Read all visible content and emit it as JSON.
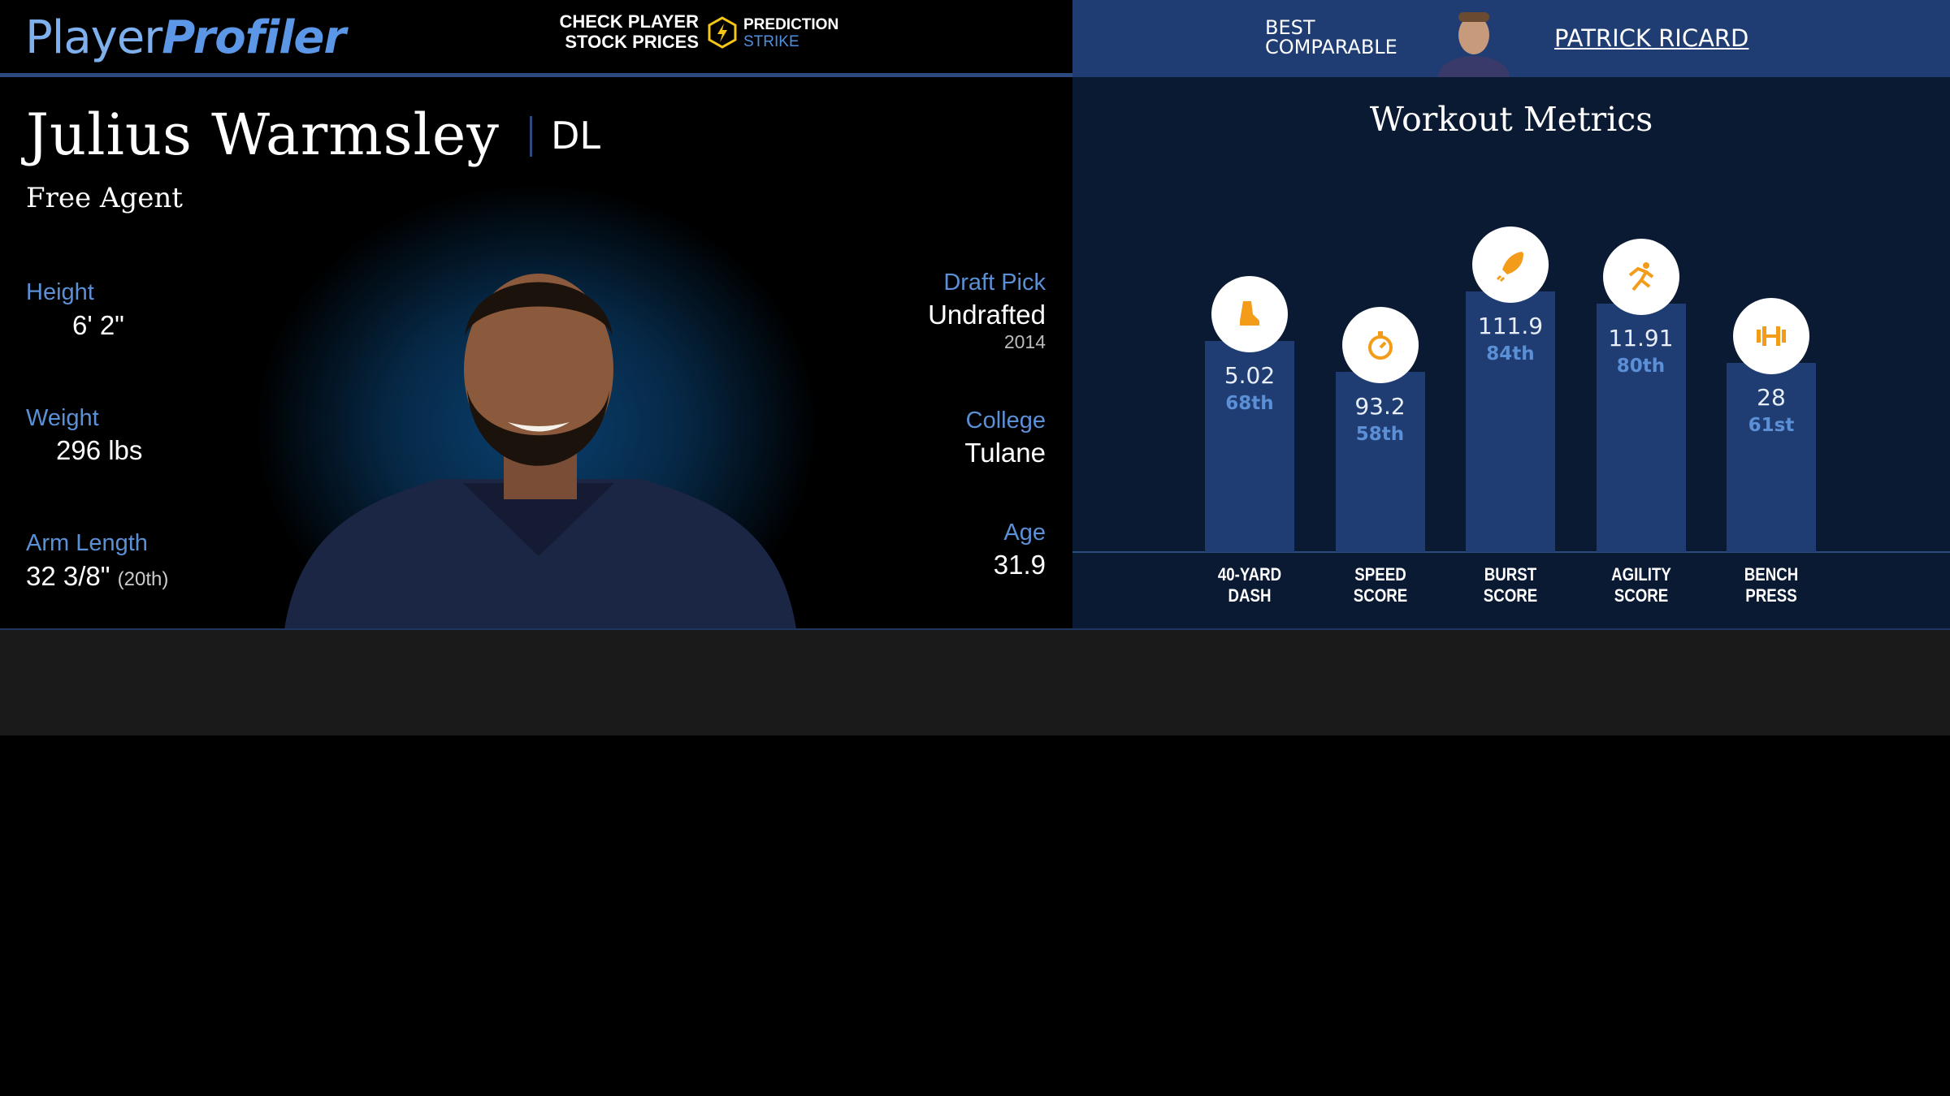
{
  "header": {
    "logo": {
      "part1": "Player",
      "part2": "Profiler"
    },
    "promo": {
      "line1": "CHECK PLAYER",
      "line2": "STOCK PRICES",
      "brand1": "PREDICTION",
      "brand2": "STRIKE"
    },
    "comparable": {
      "label_line1": "BEST",
      "label_line2": "COMPARABLE",
      "name": "PATRICK RICARD"
    }
  },
  "player": {
    "name": "Julius Warmsley",
    "position": "DL",
    "team": "Free Agent",
    "height": {
      "label": "Height",
      "value": "6' 2\""
    },
    "weight": {
      "label": "Weight",
      "value": "296 lbs"
    },
    "arm_length": {
      "label": "Arm Length",
      "value": "32 3/8\"",
      "rank": "(20th)"
    },
    "draft_pick": {
      "label": "Draft Pick",
      "value": "Undrafted",
      "year": "2014"
    },
    "college": {
      "label": "College",
      "value": "Tulane"
    },
    "age": {
      "label": "Age",
      "value": "31.9"
    }
  },
  "workout_metrics": {
    "title": "Workout Metrics",
    "metrics": [
      {
        "label": "40-YARD DASH",
        "value": "5.02",
        "percentile": 68,
        "percentile_label": "68th"
      },
      {
        "label": "SPEED SCORE",
        "value": "93.2",
        "percentile": 58,
        "percentile_label": "58th"
      },
      {
        "label": "BURST SCORE",
        "value": "111.9",
        "percentile": 84,
        "percentile_label": "84th"
      },
      {
        "label": "AGILITY SCORE",
        "value": "11.91",
        "percentile": 80,
        "percentile_label": "80th"
      },
      {
        "label": "BENCH PRESS",
        "value": "28",
        "percentile": 61,
        "percentile_label": "61st"
      }
    ]
  }
}
